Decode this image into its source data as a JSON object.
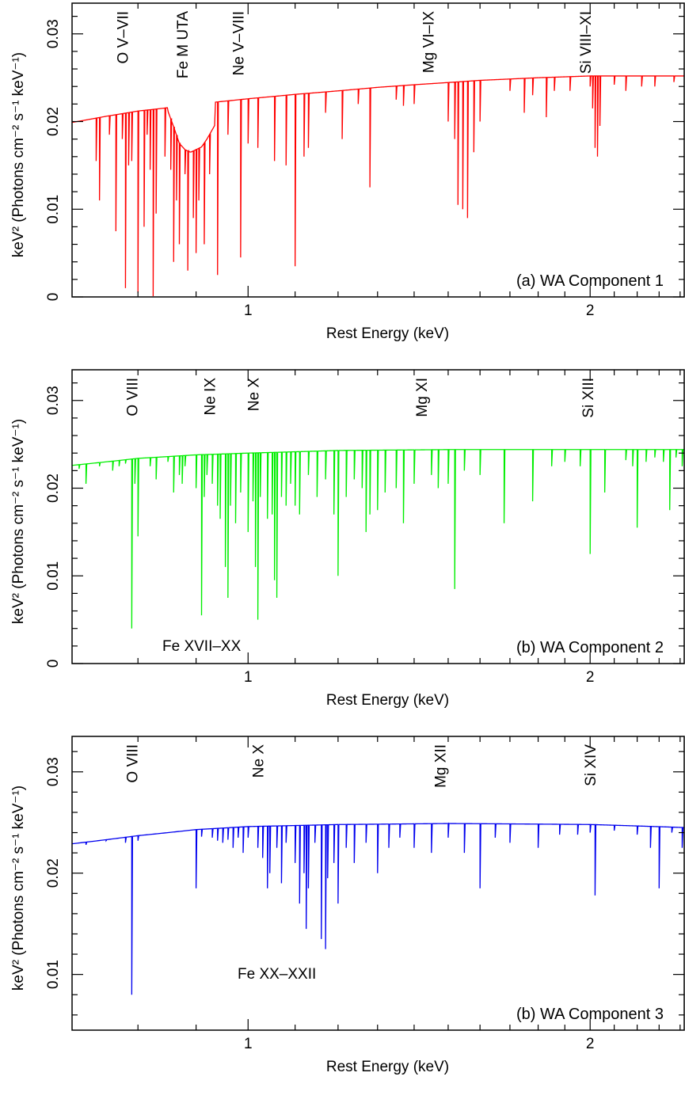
{
  "chart_data": [
    {
      "type": "line",
      "color": "#ff0000",
      "panel_label": "(a) WA Component 1",
      "xlabel": "Rest Energy (keV)",
      "ylabel": "keV² (Photons cm⁻² s⁻¹ keV⁻¹)",
      "xlim": [
        0.7,
        2.42
      ],
      "ylim": [
        0,
        0.0335
      ],
      "log_x": true,
      "x_tick_labels": [
        {
          "v": 1,
          "t": "1"
        },
        {
          "v": 2,
          "t": "2"
        }
      ],
      "y_tick_labels": [
        {
          "v": 0,
          "t": "0"
        },
        {
          "v": 0.01,
          "t": "0.01"
        },
        {
          "v": 0.02,
          "t": "0.02"
        },
        {
          "v": 0.03,
          "t": "0.03"
        }
      ],
      "continuum": [
        [
          0.7,
          0.0199
        ],
        [
          0.75,
          0.0206
        ],
        [
          0.8,
          0.0212
        ],
        [
          0.84,
          0.0215
        ],
        [
          0.9,
          0.022
        ],
        [
          0.95,
          0.0223
        ],
        [
          1.0,
          0.0226
        ],
        [
          1.1,
          0.0231
        ],
        [
          1.2,
          0.0235
        ],
        [
          1.3,
          0.0239
        ],
        [
          1.4,
          0.0242
        ],
        [
          1.6,
          0.0247
        ],
        [
          1.8,
          0.025
        ],
        [
          2.0,
          0.0252
        ],
        [
          2.2,
          0.0252
        ],
        [
          2.42,
          0.0252
        ]
      ],
      "trough": {
        "x_start": 0.85,
        "x_end": 0.935,
        "shape": [
          [
            0.85,
            0.0212
          ],
          [
            0.86,
            0.0194
          ],
          [
            0.87,
            0.0175
          ],
          [
            0.88,
            0.0168
          ],
          [
            0.89,
            0.0165
          ],
          [
            0.9,
            0.0168
          ],
          [
            0.91,
            0.0171
          ],
          [
            0.92,
            0.018
          ],
          [
            0.935,
            0.0196
          ]
        ]
      },
      "lines": [
        [
          0.735,
          0.0155
        ],
        [
          0.74,
          0.011
        ],
        [
          0.755,
          0.0185
        ],
        [
          0.765,
          0.0075
        ],
        [
          0.775,
          0.018
        ],
        [
          0.78,
          0.001
        ],
        [
          0.785,
          0.015
        ],
        [
          0.79,
          0.0155
        ],
        [
          0.8,
          0.0005
        ],
        [
          0.81,
          0.008
        ],
        [
          0.815,
          0.0185
        ],
        [
          0.82,
          0.0145
        ],
        [
          0.825,
          0.0
        ],
        [
          0.83,
          0.0095
        ],
        [
          0.845,
          0.016
        ],
        [
          0.855,
          0.0145
        ],
        [
          0.86,
          0.004
        ],
        [
          0.865,
          0.011
        ],
        [
          0.87,
          0.006
        ],
        [
          0.88,
          0.014
        ],
        [
          0.885,
          0.003
        ],
        [
          0.895,
          0.009
        ],
        [
          0.9,
          0.005
        ],
        [
          0.905,
          0.011
        ],
        [
          0.915,
          0.006
        ],
        [
          0.925,
          0.014
        ],
        [
          0.94,
          0.0025
        ],
        [
          0.96,
          0.0185
        ],
        [
          0.985,
          0.0045
        ],
        [
          1.0,
          0.0175
        ],
        [
          1.02,
          0.017
        ],
        [
          1.055,
          0.0155
        ],
        [
          1.08,
          0.015
        ],
        [
          1.1,
          0.0035
        ],
        [
          1.12,
          0.016
        ],
        [
          1.13,
          0.017
        ],
        [
          1.17,
          0.021
        ],
        [
          1.21,
          0.018
        ],
        [
          1.25,
          0.022
        ],
        [
          1.28,
          0.0125
        ],
        [
          1.35,
          0.0225
        ],
        [
          1.37,
          0.0218
        ],
        [
          1.4,
          0.022
        ],
        [
          1.5,
          0.02
        ],
        [
          1.52,
          0.018
        ],
        [
          1.53,
          0.0105
        ],
        [
          1.545,
          0.01
        ],
        [
          1.56,
          0.009
        ],
        [
          1.58,
          0.0165
        ],
        [
          1.6,
          0.02
        ],
        [
          1.7,
          0.0235
        ],
        [
          1.75,
          0.021
        ],
        [
          1.78,
          0.023
        ],
        [
          1.83,
          0.0205
        ],
        [
          1.86,
          0.0235
        ],
        [
          1.92,
          0.0235
        ],
        [
          2.0,
          0.024
        ],
        [
          2.01,
          0.0215
        ],
        [
          2.02,
          0.017
        ],
        [
          2.03,
          0.016
        ],
        [
          2.04,
          0.0195
        ],
        [
          2.1,
          0.0242
        ],
        [
          2.15,
          0.0235
        ],
        [
          2.22,
          0.024
        ],
        [
          2.28,
          0.024
        ],
        [
          2.37,
          0.0245
        ]
      ],
      "annotations": [
        {
          "x": 0.775,
          "text": "O V–VII"
        },
        {
          "x": 0.875,
          "text": "Fe M UTA"
        },
        {
          "x": 0.98,
          "text": "Ne V–VIII"
        },
        {
          "x": 1.44,
          "text": "Mg VI–IX"
        },
        {
          "x": 1.98,
          "text": "Si VIII–XI"
        }
      ]
    },
    {
      "type": "line",
      "color": "#00ee00",
      "panel_label": "(b) WA Component 2",
      "bottom_annotation": "Fe XVII–XX",
      "xlabel": "Rest Energy (keV)",
      "ylabel": "keV² (Photons cm⁻² s⁻¹ keV⁻¹)",
      "xlim": [
        0.7,
        2.42
      ],
      "ylim": [
        0,
        0.0335
      ],
      "log_x": true,
      "x_tick_labels": [
        {
          "v": 1,
          "t": "1"
        },
        {
          "v": 2,
          "t": "2"
        }
      ],
      "y_tick_labels": [
        {
          "v": 0,
          "t": "0"
        },
        {
          "v": 0.01,
          "t": "0.01"
        },
        {
          "v": 0.02,
          "t": "0.02"
        },
        {
          "v": 0.03,
          "t": "0.03"
        }
      ],
      "continuum": [
        [
          0.7,
          0.0226
        ],
        [
          0.8,
          0.0234
        ],
        [
          0.9,
          0.0238
        ],
        [
          1.0,
          0.024
        ],
        [
          1.2,
          0.0243
        ],
        [
          1.5,
          0.0244
        ],
        [
          2.0,
          0.0244
        ],
        [
          2.42,
          0.0244
        ]
      ],
      "trough": null,
      "lines": [
        [
          0.71,
          0.0222
        ],
        [
          0.72,
          0.0205
        ],
        [
          0.74,
          0.0225
        ],
        [
          0.75,
          0.023
        ],
        [
          0.76,
          0.022
        ],
        [
          0.77,
          0.0225
        ],
        [
          0.78,
          0.0228
        ],
        [
          0.79,
          0.004
        ],
        [
          0.795,
          0.0205
        ],
        [
          0.8,
          0.0145
        ],
        [
          0.82,
          0.0225
        ],
        [
          0.83,
          0.021
        ],
        [
          0.85,
          0.023
        ],
        [
          0.86,
          0.0195
        ],
        [
          0.87,
          0.0215
        ],
        [
          0.875,
          0.0205
        ],
        [
          0.88,
          0.0225
        ],
        [
          0.9,
          0.02
        ],
        [
          0.91,
          0.0055
        ],
        [
          0.915,
          0.019
        ],
        [
          0.92,
          0.0215
        ],
        [
          0.93,
          0.0205
        ],
        [
          0.94,
          0.018
        ],
        [
          0.945,
          0.0165
        ],
        [
          0.955,
          0.011
        ],
        [
          0.96,
          0.0075
        ],
        [
          0.965,
          0.018
        ],
        [
          0.975,
          0.016
        ],
        [
          0.985,
          0.0195
        ],
        [
          1.0,
          0.015
        ],
        [
          1.01,
          0.0185
        ],
        [
          1.015,
          0.011
        ],
        [
          1.02,
          0.005
        ],
        [
          1.025,
          0.019
        ],
        [
          1.04,
          0.0165
        ],
        [
          1.05,
          0.017
        ],
        [
          1.055,
          0.0095
        ],
        [
          1.06,
          0.0075
        ],
        [
          1.07,
          0.019
        ],
        [
          1.08,
          0.018
        ],
        [
          1.09,
          0.0205
        ],
        [
          1.1,
          0.018
        ],
        [
          1.11,
          0.017
        ],
        [
          1.13,
          0.0215
        ],
        [
          1.15,
          0.019
        ],
        [
          1.17,
          0.021
        ],
        [
          1.19,
          0.017
        ],
        [
          1.2,
          0.01
        ],
        [
          1.22,
          0.019
        ],
        [
          1.24,
          0.021
        ],
        [
          1.26,
          0.02
        ],
        [
          1.27,
          0.015
        ],
        [
          1.28,
          0.017
        ],
        [
          1.3,
          0.0175
        ],
        [
          1.32,
          0.0195
        ],
        [
          1.35,
          0.02
        ],
        [
          1.37,
          0.016
        ],
        [
          1.4,
          0.0205
        ],
        [
          1.45,
          0.0215
        ],
        [
          1.47,
          0.02
        ],
        [
          1.5,
          0.0205
        ],
        [
          1.52,
          0.0085
        ],
        [
          1.55,
          0.022
        ],
        [
          1.6,
          0.0215
        ],
        [
          1.68,
          0.016
        ],
        [
          1.78,
          0.0185
        ],
        [
          1.85,
          0.0225
        ],
        [
          1.9,
          0.023
        ],
        [
          1.96,
          0.0225
        ],
        [
          2.0,
          0.0125
        ],
        [
          2.06,
          0.0195
        ],
        [
          2.15,
          0.0232
        ],
        [
          2.18,
          0.0225
        ],
        [
          2.2,
          0.0155
        ],
        [
          2.24,
          0.023
        ],
        [
          2.28,
          0.0235
        ],
        [
          2.32,
          0.023
        ],
        [
          2.35,
          0.0175
        ],
        [
          2.38,
          0.0235
        ],
        [
          2.41,
          0.0225
        ]
      ],
      "annotations": [
        {
          "x": 0.79,
          "text": "O VIII"
        },
        {
          "x": 0.925,
          "text": "Ne IX"
        },
        {
          "x": 1.01,
          "text": "Ne X"
        },
        {
          "x": 1.42,
          "text": "Mg XI"
        },
        {
          "x": 1.99,
          "text": "Si XIII"
        }
      ]
    },
    {
      "type": "line",
      "color": "#0000ee",
      "panel_label": "(b) WA Component 3",
      "bottom_annotation": "Fe XX–XXII",
      "xlabel": "Rest Energy (keV)",
      "ylabel": "keV² (Photons cm⁻² s⁻¹ keV⁻¹)",
      "xlim": [
        0.7,
        2.42
      ],
      "ylim": [
        0.0045,
        0.0335
      ],
      "log_x": true,
      "x_tick_labels": [
        {
          "v": 1,
          "t": "1"
        },
        {
          "v": 2,
          "t": "2"
        }
      ],
      "y_tick_labels": [
        {
          "v": 0.01,
          "t": "0.01"
        },
        {
          "v": 0.02,
          "t": "0.02"
        },
        {
          "v": 0.03,
          "t": "0.03"
        }
      ],
      "continuum": [
        [
          0.7,
          0.0229
        ],
        [
          0.8,
          0.0237
        ],
        [
          0.9,
          0.0243
        ],
        [
          1.0,
          0.0246
        ],
        [
          1.2,
          0.0248
        ],
        [
          1.5,
          0.0249
        ],
        [
          2.0,
          0.0248
        ],
        [
          2.42,
          0.0245
        ]
      ],
      "trough": null,
      "lines": [
        [
          0.72,
          0.0228
        ],
        [
          0.75,
          0.0232
        ],
        [
          0.78,
          0.023
        ],
        [
          0.79,
          0.008
        ],
        [
          0.8,
          0.0232
        ],
        [
          0.9,
          0.0185
        ],
        [
          0.91,
          0.0236
        ],
        [
          0.93,
          0.0235
        ],
        [
          0.94,
          0.0232
        ],
        [
          0.95,
          0.023
        ],
        [
          0.96,
          0.0233
        ],
        [
          0.97,
          0.0225
        ],
        [
          0.98,
          0.0235
        ],
        [
          0.99,
          0.022
        ],
        [
          1.0,
          0.0235
        ],
        [
          1.02,
          0.0225
        ],
        [
          1.03,
          0.0215
        ],
        [
          1.04,
          0.0185
        ],
        [
          1.045,
          0.02
        ],
        [
          1.06,
          0.0225
        ],
        [
          1.07,
          0.019
        ],
        [
          1.08,
          0.023
        ],
        [
          1.1,
          0.021
        ],
        [
          1.11,
          0.017
        ],
        [
          1.12,
          0.02
        ],
        [
          1.125,
          0.0145
        ],
        [
          1.13,
          0.0185
        ],
        [
          1.145,
          0.023
        ],
        [
          1.16,
          0.0135
        ],
        [
          1.17,
          0.0125
        ],
        [
          1.175,
          0.0195
        ],
        [
          1.19,
          0.021
        ],
        [
          1.2,
          0.017
        ],
        [
          1.22,
          0.0225
        ],
        [
          1.24,
          0.021
        ],
        [
          1.27,
          0.023
        ],
        [
          1.3,
          0.02
        ],
        [
          1.33,
          0.0225
        ],
        [
          1.36,
          0.0235
        ],
        [
          1.4,
          0.0225
        ],
        [
          1.45,
          0.022
        ],
        [
          1.5,
          0.0235
        ],
        [
          1.55,
          0.022
        ],
        [
          1.6,
          0.0185
        ],
        [
          1.65,
          0.0235
        ],
        [
          1.7,
          0.023
        ],
        [
          1.8,
          0.0225
        ],
        [
          1.88,
          0.0238
        ],
        [
          1.95,
          0.0238
        ],
        [
          2.0,
          0.024
        ],
        [
          2.02,
          0.0178
        ],
        [
          2.1,
          0.0242
        ],
        [
          2.2,
          0.0238
        ],
        [
          2.26,
          0.0225
        ],
        [
          2.3,
          0.0185
        ],
        [
          2.36,
          0.024
        ],
        [
          2.41,
          0.0225
        ]
      ],
      "annotations": [
        {
          "x": 0.79,
          "text": "O VIII"
        },
        {
          "x": 1.02,
          "text": "Ne X"
        },
        {
          "x": 1.475,
          "text": "Mg XII"
        },
        {
          "x": 2.0,
          "text": "Si XIV"
        }
      ]
    }
  ]
}
